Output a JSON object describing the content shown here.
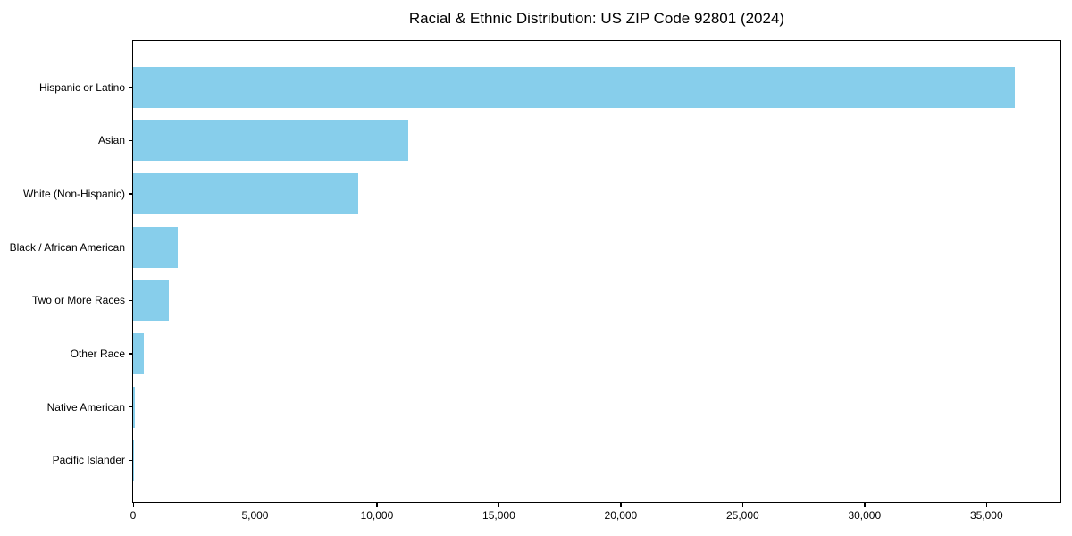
{
  "chart_data": {
    "type": "bar",
    "orientation": "horizontal",
    "title": "Racial & Ethnic Distribution: US ZIP Code 92801 (2024)",
    "categories": [
      "Hispanic or Latino",
      "Asian",
      "White (Non-Hispanic)",
      "Black / African American",
      "Two or More Races",
      "Other Race",
      "Native American",
      "Pacific Islander"
    ],
    "values": [
      36150,
      11300,
      9230,
      1830,
      1450,
      430,
      70,
      25
    ],
    "bar_color": "#87CEEB",
    "spine_color": "#000000",
    "text_color": "#000000",
    "xlabel": "",
    "ylabel": "",
    "xlim": [
      0,
      38030
    ],
    "x_ticks": [
      {
        "value": 0,
        "label": "0"
      },
      {
        "value": 5000,
        "label": "5,000"
      },
      {
        "value": 10000,
        "label": "10,000"
      },
      {
        "value": 15000,
        "label": "15,000"
      },
      {
        "value": 20000,
        "label": "20,000"
      },
      {
        "value": 25000,
        "label": "25,000"
      },
      {
        "value": 30000,
        "label": "30,000"
      },
      {
        "value": 35000,
        "label": "35,000"
      }
    ],
    "grid": false,
    "legend": null
  }
}
